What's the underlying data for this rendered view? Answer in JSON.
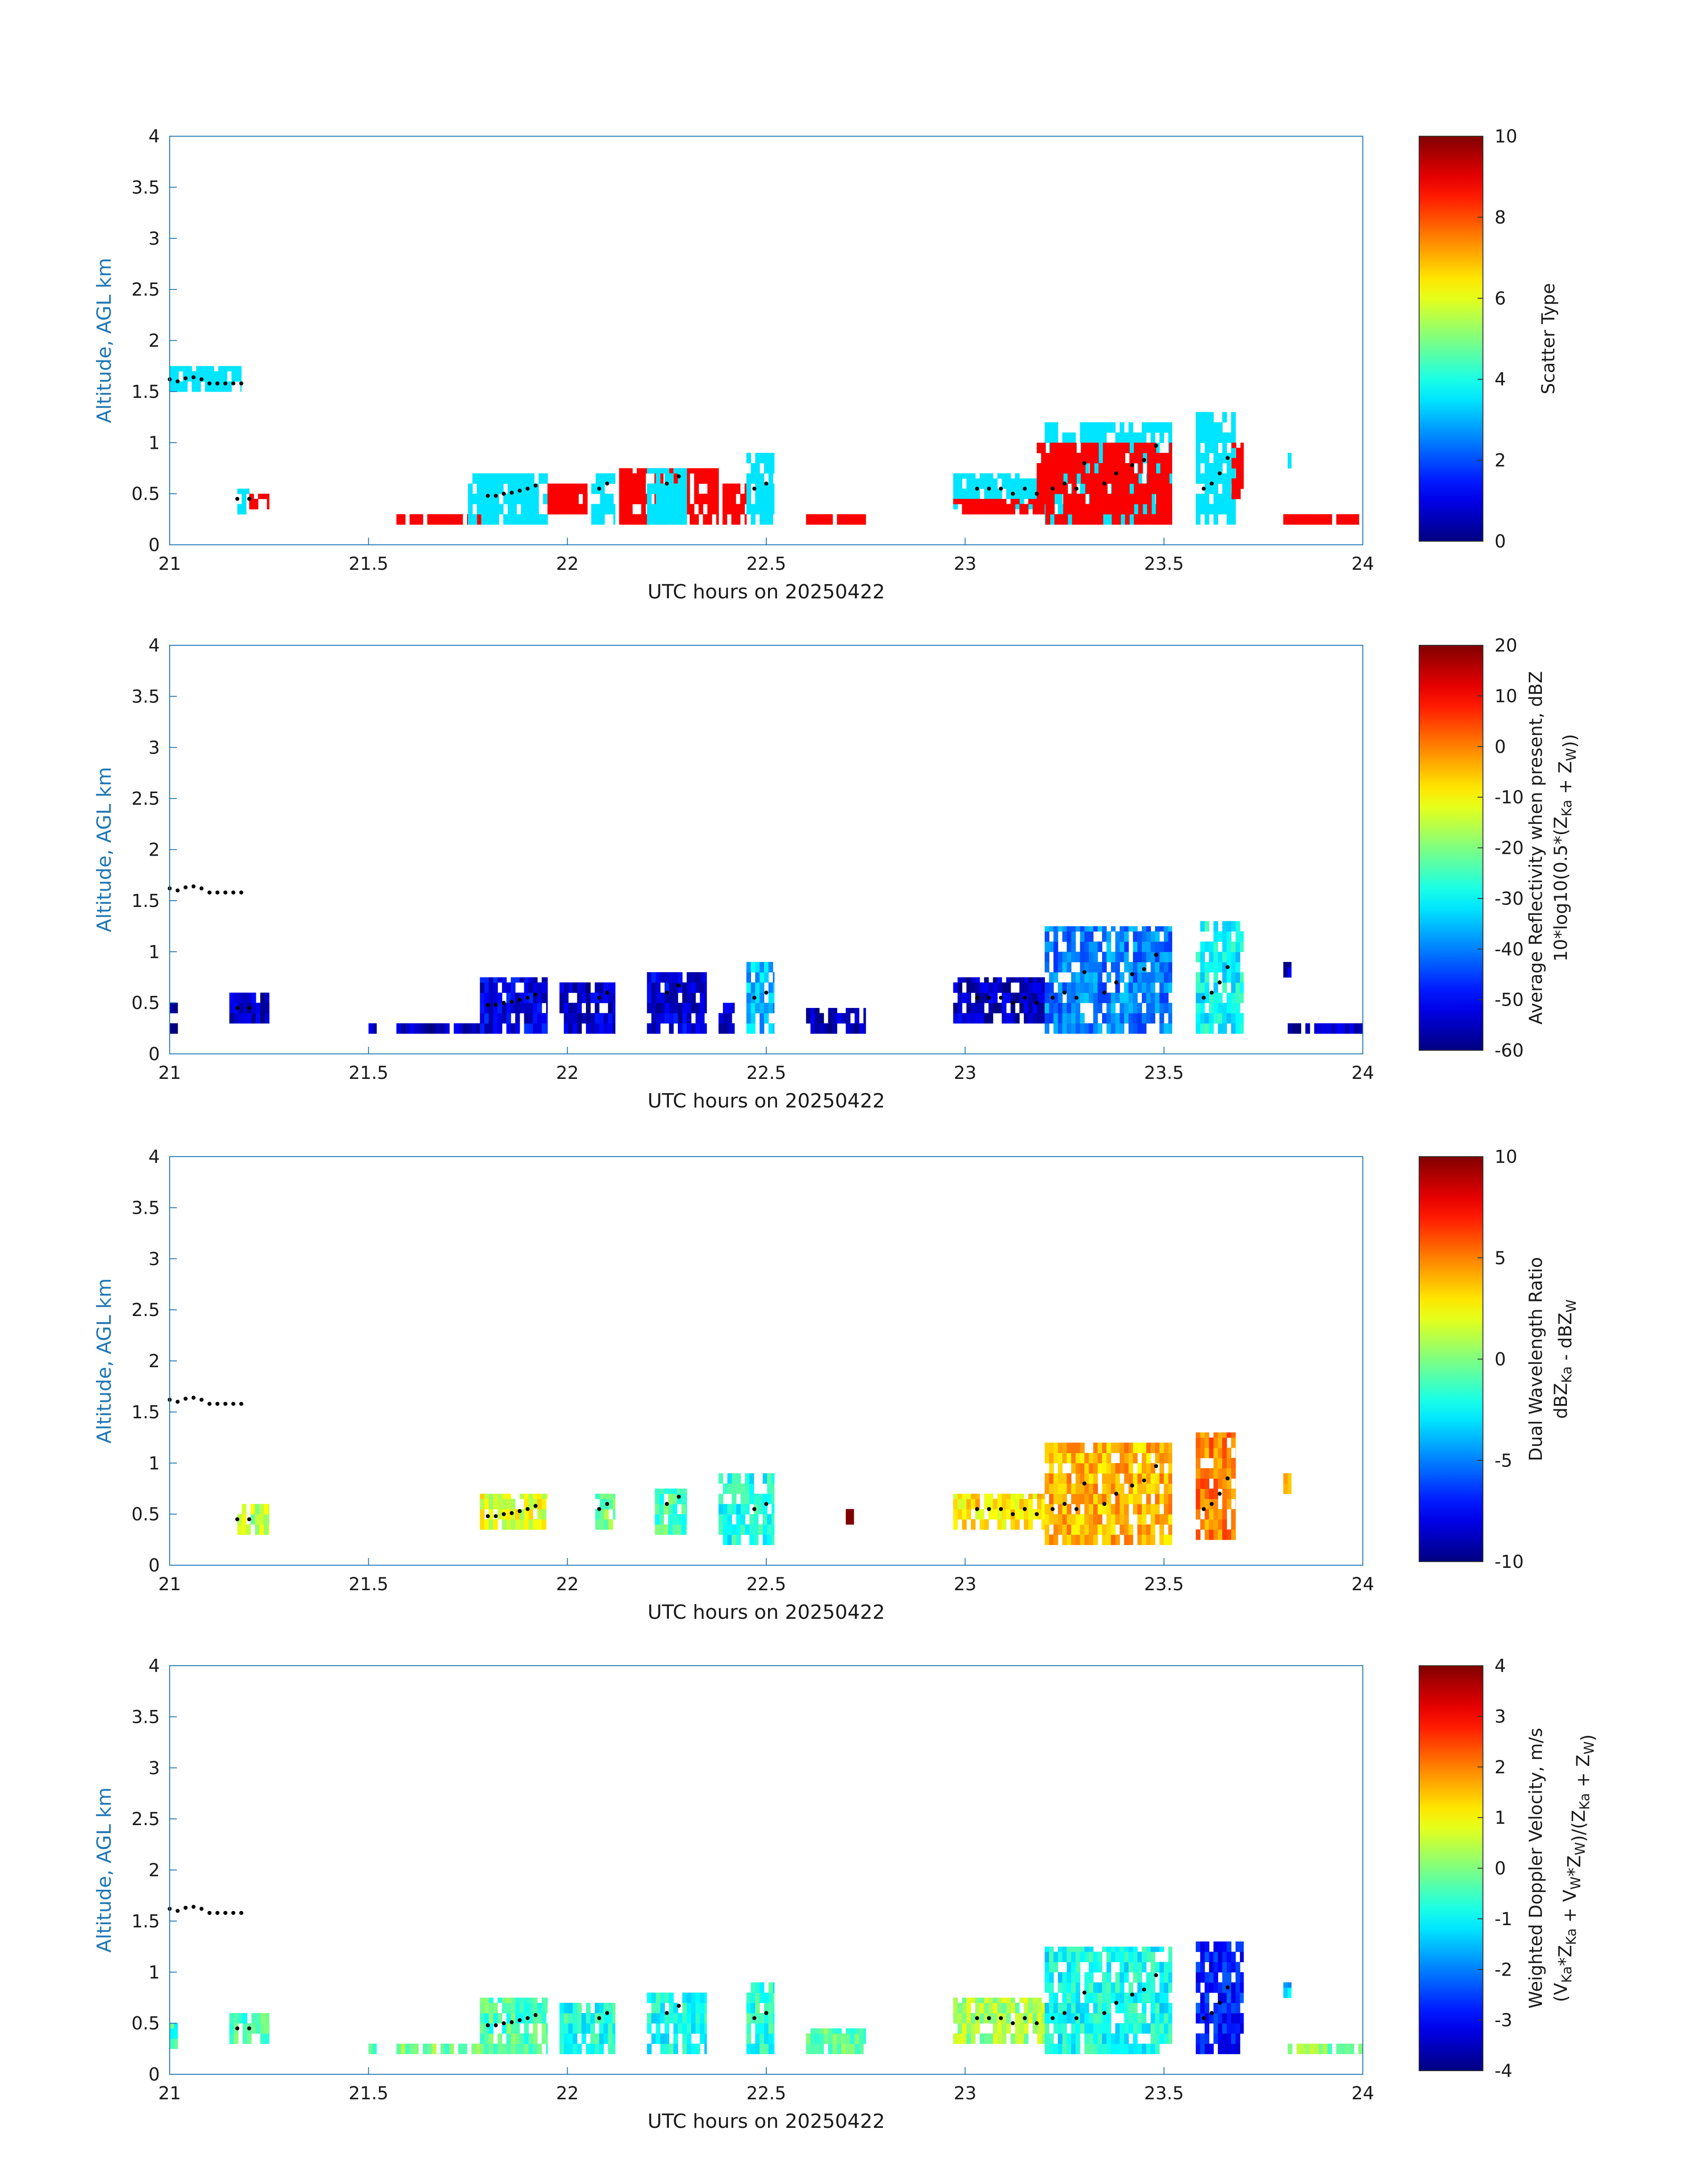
{
  "figure_date": "20250422",
  "chart_data": [
    {
      "type": "heatmap",
      "id": "scatter-type",
      "xlabel": "UTC hours on 20250422",
      "ylabel": "Altitude, AGL km",
      "xlim": [
        21,
        24
      ],
      "ylim": [
        0,
        4
      ],
      "xticks": [
        "21",
        "21.5",
        "22",
        "22.5",
        "23",
        "23.5",
        "24"
      ],
      "yticks": [
        "0",
        "0.5",
        "1",
        "1.5",
        "2",
        "2.5",
        "3",
        "3.5",
        "4"
      ],
      "colorbar": {
        "label": [
          "Scatter Type"
        ],
        "range": [
          0,
          10
        ],
        "ticks": [
          "0",
          "2",
          "4",
          "6",
          "8",
          "10"
        ]
      },
      "colorscale": "jet",
      "regions": [
        {
          "x0": 21.0,
          "x1": 21.18,
          "y0": 1.5,
          "y1": 1.75,
          "v": 3.5
        },
        {
          "x0": 21.17,
          "x1": 21.2,
          "y0": 0.3,
          "y1": 0.55,
          "v": 3.5
        },
        {
          "x0": 21.2,
          "x1": 21.25,
          "y0": 0.35,
          "y1": 0.5,
          "v": 8.8
        },
        {
          "x0": 21.57,
          "x1": 21.8,
          "y0": 0.2,
          "y1": 0.3,
          "v": 8.8
        },
        {
          "x0": 21.75,
          "x1": 21.95,
          "y0": 0.2,
          "y1": 0.7,
          "v": 3.5
        },
        {
          "x0": 21.95,
          "x1": 22.05,
          "y0": 0.3,
          "y1": 0.6,
          "v": 8.8
        },
        {
          "x0": 22.06,
          "x1": 22.12,
          "y0": 0.2,
          "y1": 0.7,
          "v": 3.5
        },
        {
          "x0": 22.13,
          "x1": 22.38,
          "y0": 0.2,
          "y1": 0.75,
          "v": 8.8
        },
        {
          "x0": 22.2,
          "x1": 22.3,
          "y0": 0.2,
          "y1": 0.75,
          "v": 3.5
        },
        {
          "x0": 22.39,
          "x1": 22.45,
          "y0": 0.2,
          "y1": 0.6,
          "v": 8.8
        },
        {
          "x0": 22.45,
          "x1": 22.52,
          "y0": 0.2,
          "y1": 0.9,
          "v": 3.5
        },
        {
          "x0": 22.6,
          "x1": 22.75,
          "y0": 0.2,
          "y1": 0.3,
          "v": 8.8
        },
        {
          "x0": 22.97,
          "x1": 23.2,
          "y0": 0.35,
          "y1": 0.7,
          "v": 3.5
        },
        {
          "x0": 22.97,
          "x1": 23.2,
          "y0": 0.3,
          "y1": 0.45,
          "v": 8.8
        },
        {
          "x0": 23.2,
          "x1": 23.52,
          "y0": 0.2,
          "y1": 1.2,
          "v": 3.5
        },
        {
          "x0": 23.18,
          "x1": 23.52,
          "y0": 0.2,
          "y1": 1.0,
          "v": 8.8
        },
        {
          "x0": 23.58,
          "x1": 23.68,
          "y0": 0.2,
          "y1": 1.3,
          "v": 3.5
        },
        {
          "x0": 23.67,
          "x1": 23.7,
          "y0": 0.45,
          "y1": 1.0,
          "v": 8.8
        },
        {
          "x0": 23.8,
          "x1": 23.82,
          "y0": 0.75,
          "y1": 0.9,
          "v": 3.5
        },
        {
          "x0": 23.8,
          "x1": 23.99,
          "y0": 0.2,
          "y1": 0.3,
          "v": 8.8
        }
      ]
    },
    {
      "type": "heatmap",
      "id": "average-reflectivity",
      "xlabel": "UTC hours on 20250422",
      "ylabel": "Altitude, AGL km",
      "xlim": [
        21,
        24
      ],
      "ylim": [
        0,
        4
      ],
      "xticks": [
        "21",
        "21.5",
        "22",
        "22.5",
        "23",
        "23.5",
        "24"
      ],
      "yticks": [
        "0",
        "0.5",
        "1",
        "1.5",
        "2",
        "2.5",
        "3",
        "3.5",
        "4"
      ],
      "colorbar": {
        "label": [
          "Average Reflectivity when present, dBZ",
          "10*log10(0.5*(Z_Ka + Z_W))"
        ],
        "range": [
          -60,
          20
        ],
        "ticks": [
          "-60",
          "-50",
          "-40",
          "-30",
          "-20",
          "-10",
          "0",
          "10",
          "20"
        ]
      },
      "colorscale": "jet",
      "regions": [
        {
          "x0": 21.0,
          "x1": 21.02,
          "y0": 0.2,
          "y1": 0.5,
          "v": -57
        },
        {
          "x0": 21.15,
          "x1": 21.25,
          "y0": 0.3,
          "y1": 0.6,
          "v": -55
        },
        {
          "x0": 21.5,
          "x1": 21.52,
          "y0": 0.2,
          "y1": 0.3,
          "v": -57
        },
        {
          "x0": 21.57,
          "x1": 21.8,
          "y0": 0.2,
          "y1": 0.3,
          "v": -56
        },
        {
          "x0": 21.78,
          "x1": 21.95,
          "y0": 0.2,
          "y1": 0.75,
          "v": -52
        },
        {
          "x0": 21.98,
          "x1": 22.12,
          "y0": 0.2,
          "y1": 0.7,
          "v": -54
        },
        {
          "x0": 22.2,
          "x1": 22.35,
          "y0": 0.2,
          "y1": 0.8,
          "v": -53
        },
        {
          "x0": 22.38,
          "x1": 22.42,
          "y0": 0.2,
          "y1": 0.5,
          "v": -54
        },
        {
          "x0": 22.45,
          "x1": 22.52,
          "y0": 0.2,
          "y1": 0.9,
          "v": -35
        },
        {
          "x0": 22.6,
          "x1": 22.75,
          "y0": 0.2,
          "y1": 0.45,
          "v": -56
        },
        {
          "x0": 22.97,
          "x1": 23.2,
          "y0": 0.3,
          "y1": 0.75,
          "v": -55
        },
        {
          "x0": 23.2,
          "x1": 23.52,
          "y0": 0.2,
          "y1": 1.25,
          "v": -40
        },
        {
          "x0": 23.58,
          "x1": 23.7,
          "y0": 0.2,
          "y1": 1.3,
          "v": -30
        },
        {
          "x0": 23.8,
          "x1": 23.82,
          "y0": 0.75,
          "y1": 0.9,
          "v": -55
        },
        {
          "x0": 23.8,
          "x1": 24.0,
          "y0": 0.2,
          "y1": 0.3,
          "v": -56
        }
      ]
    },
    {
      "type": "heatmap",
      "id": "dual-wavelength-ratio",
      "xlabel": "UTC hours on 20250422",
      "ylabel": "Altitude, AGL km",
      "xlim": [
        21,
        24
      ],
      "ylim": [
        0,
        4
      ],
      "xticks": [
        "21",
        "21.5",
        "22",
        "22.5",
        "23",
        "23.5",
        "24"
      ],
      "yticks": [
        "0",
        "0.5",
        "1",
        "1.5",
        "2",
        "2.5",
        "3",
        "3.5",
        "4"
      ],
      "colorbar": {
        "label": [
          "Dual Wavelength Ratio",
          "dBZ_Ka - dBZ_W"
        ],
        "range": [
          -10,
          10
        ],
        "ticks": [
          "-10",
          "-5",
          "0",
          "5",
          "10"
        ]
      },
      "colorscale": "jet",
      "regions": [
        {
          "x0": 21.17,
          "x1": 21.25,
          "y0": 0.3,
          "y1": 0.6,
          "v": 1
        },
        {
          "x0": 21.78,
          "x1": 21.95,
          "y0": 0.35,
          "y1": 0.7,
          "v": 2
        },
        {
          "x0": 22.07,
          "x1": 22.12,
          "y0": 0.35,
          "y1": 0.7,
          "v": 0
        },
        {
          "x0": 22.22,
          "x1": 22.3,
          "y0": 0.3,
          "y1": 0.75,
          "v": -1
        },
        {
          "x0": 22.38,
          "x1": 22.52,
          "y0": 0.2,
          "y1": 0.9,
          "v": -2
        },
        {
          "x0": 22.7,
          "x1": 22.72,
          "y0": 0.4,
          "y1": 0.55,
          "v": 9
        },
        {
          "x0": 22.97,
          "x1": 23.2,
          "y0": 0.35,
          "y1": 0.7,
          "v": 3
        },
        {
          "x0": 23.2,
          "x1": 23.52,
          "y0": 0.2,
          "y1": 1.2,
          "v": 4
        },
        {
          "x0": 23.58,
          "x1": 23.68,
          "y0": 0.25,
          "y1": 1.3,
          "v": 5
        },
        {
          "x0": 23.8,
          "x1": 23.82,
          "y0": 0.7,
          "y1": 0.9,
          "v": 3
        }
      ]
    },
    {
      "type": "heatmap",
      "id": "weighted-doppler-velocity",
      "xlabel": "UTC hours on 20250422",
      "ylabel": "Altitude, AGL km",
      "xlim": [
        21,
        24
      ],
      "ylim": [
        0,
        4
      ],
      "xticks": [
        "21",
        "21.5",
        "22",
        "22.5",
        "23",
        "23.5",
        "24"
      ],
      "yticks": [
        "0",
        "0.5",
        "1",
        "1.5",
        "2",
        "2.5",
        "3",
        "3.5",
        "4"
      ],
      "colorbar": {
        "label": [
          "Weighted Doppler Velocity, m/s",
          "(V_Ka*Z_Ka + V_W*Z_W)/(Z_Ka + Z_W)"
        ],
        "range": [
          -4,
          4
        ],
        "ticks": [
          "-4",
          "-3",
          "-2",
          "-1",
          "0",
          "1",
          "2",
          "3",
          "4"
        ]
      },
      "colorscale": "jet",
      "regions": [
        {
          "x0": 21.0,
          "x1": 21.02,
          "y0": 0.25,
          "y1": 0.5,
          "v": -0.6
        },
        {
          "x0": 21.15,
          "x1": 21.25,
          "y0": 0.3,
          "y1": 0.6,
          "v": -0.5
        },
        {
          "x0": 21.5,
          "x1": 21.52,
          "y0": 0.2,
          "y1": 0.3,
          "v": -0.2
        },
        {
          "x0": 21.57,
          "x1": 21.8,
          "y0": 0.2,
          "y1": 0.3,
          "v": -0.1
        },
        {
          "x0": 21.78,
          "x1": 21.95,
          "y0": 0.2,
          "y1": 0.75,
          "v": -0.4
        },
        {
          "x0": 21.98,
          "x1": 22.12,
          "y0": 0.2,
          "y1": 0.7,
          "v": -0.8
        },
        {
          "x0": 22.2,
          "x1": 22.35,
          "y0": 0.2,
          "y1": 0.8,
          "v": -0.9
        },
        {
          "x0": 22.45,
          "x1": 22.52,
          "y0": 0.2,
          "y1": 0.9,
          "v": -0.7
        },
        {
          "x0": 22.6,
          "x1": 22.75,
          "y0": 0.2,
          "y1": 0.45,
          "v": -0.3
        },
        {
          "x0": 22.97,
          "x1": 23.2,
          "y0": 0.3,
          "y1": 0.75,
          "v": 0.3
        },
        {
          "x0": 23.2,
          "x1": 23.52,
          "y0": 0.2,
          "y1": 1.25,
          "v": -0.9
        },
        {
          "x0": 23.58,
          "x1": 23.7,
          "y0": 0.2,
          "y1": 1.3,
          "v": -2.8
        },
        {
          "x0": 23.8,
          "x1": 23.82,
          "y0": 0.75,
          "y1": 0.9,
          "v": -1.5
        },
        {
          "x0": 23.8,
          "x1": 24.0,
          "y0": 0.2,
          "y1": 0.3,
          "v": 0.0
        }
      ]
    }
  ],
  "cloud_base_points": [
    [
      21.0,
      1.62
    ],
    [
      21.02,
      1.6
    ],
    [
      21.04,
      1.63
    ],
    [
      21.06,
      1.64
    ],
    [
      21.08,
      1.62
    ],
    [
      21.1,
      1.58
    ],
    [
      21.12,
      1.58
    ],
    [
      21.14,
      1.58
    ],
    [
      21.16,
      1.58
    ],
    [
      21.18,
      1.58
    ],
    [
      21.17,
      0.45
    ],
    [
      21.2,
      0.45
    ],
    [
      21.8,
      0.48
    ],
    [
      21.82,
      0.48
    ],
    [
      21.84,
      0.5
    ],
    [
      21.86,
      0.51
    ],
    [
      21.88,
      0.53
    ],
    [
      21.9,
      0.55
    ],
    [
      21.92,
      0.58
    ],
    [
      22.08,
      0.55
    ],
    [
      22.1,
      0.6
    ],
    [
      22.25,
      0.6
    ],
    [
      22.28,
      0.67
    ],
    [
      22.47,
      0.55
    ],
    [
      22.5,
      0.6
    ],
    [
      23.03,
      0.55
    ],
    [
      23.06,
      0.55
    ],
    [
      23.09,
      0.55
    ],
    [
      23.12,
      0.5
    ],
    [
      23.15,
      0.55
    ],
    [
      23.18,
      0.5
    ],
    [
      23.22,
      0.55
    ],
    [
      23.25,
      0.6
    ],
    [
      23.28,
      0.55
    ],
    [
      23.3,
      0.8
    ],
    [
      23.35,
      0.6
    ],
    [
      23.38,
      0.7
    ],
    [
      23.42,
      0.78
    ],
    [
      23.45,
      0.83
    ],
    [
      23.48,
      0.97
    ],
    [
      23.6,
      0.55
    ],
    [
      23.62,
      0.6
    ],
    [
      23.64,
      0.7
    ],
    [
      23.66,
      0.85
    ]
  ]
}
